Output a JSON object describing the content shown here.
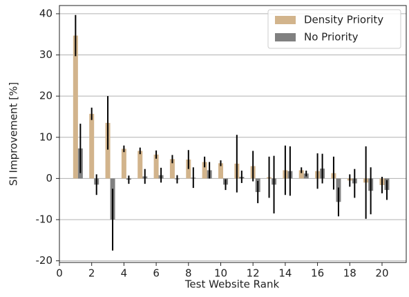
{
  "chart_data": {
    "type": "bar",
    "x_label": "Test Website Rank",
    "y_label": "SI Improvement [%]",
    "x": [
      1,
      2,
      3,
      4,
      5,
      6,
      7,
      8,
      9,
      10,
      11,
      12,
      13,
      14,
      15,
      16,
      17,
      18,
      19,
      20
    ],
    "series": [
      {
        "name": "Density Priority",
        "color": "#d2b48c",
        "values": [
          34.7,
          15.7,
          13.5,
          7.2,
          6.7,
          5.8,
          4.7,
          4.6,
          4.0,
          3.7,
          3.6,
          3.0,
          0.3,
          2.0,
          2.0,
          1.8,
          1.3,
          -0.5,
          -1.0,
          -1.6
        ],
        "errors": [
          5.0,
          1.5,
          6.5,
          0.8,
          0.8,
          1.0,
          1.0,
          2.3,
          1.3,
          0.7,
          7.0,
          3.7,
          5.0,
          6.0,
          0.7,
          4.3,
          4.0,
          1.5,
          8.8,
          2.0
        ]
      },
      {
        "name": "No Priority",
        "color": "#808080",
        "values": [
          7.3,
          -1.5,
          -10.0,
          -0.3,
          0.5,
          0.8,
          -0.2,
          0.2,
          2.0,
          -1.5,
          0.4,
          -3.3,
          -1.5,
          1.8,
          1.2,
          2.4,
          -5.7,
          -1.2,
          -3.0,
          -2.8
        ],
        "errors": [
          6.0,
          2.5,
          7.5,
          1.0,
          1.8,
          1.8,
          1.0,
          2.5,
          2.0,
          1.3,
          1.5,
          2.7,
          7.0,
          6.0,
          0.7,
          3.6,
          3.5,
          3.5,
          5.7,
          2.4
        ]
      }
    ],
    "xlim": [
      0,
      21.5
    ],
    "ylim": [
      -20.4,
      42
    ],
    "xticks": [
      0,
      2,
      4,
      6,
      8,
      10,
      12,
      14,
      16,
      18,
      20
    ],
    "yticks": [
      -20,
      -10,
      0,
      10,
      20,
      30,
      40
    ],
    "grid": true,
    "legend": "upper right"
  }
}
